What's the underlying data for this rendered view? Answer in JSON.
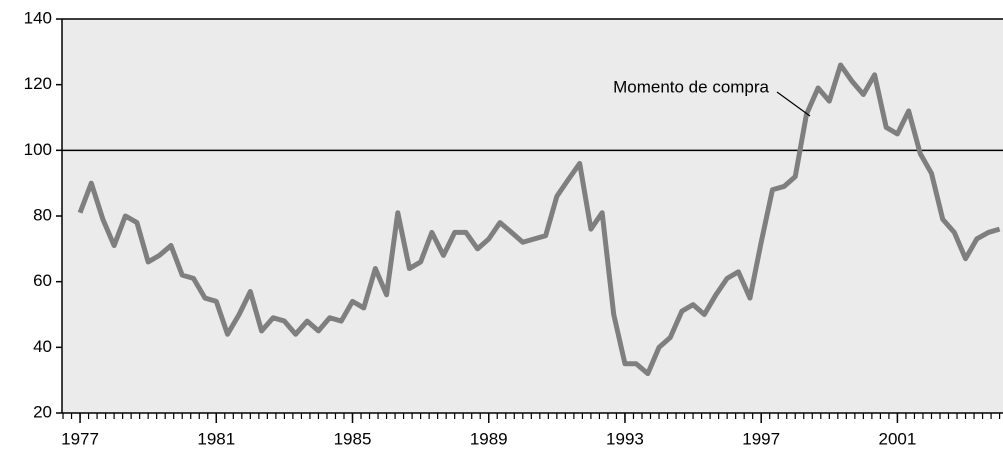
{
  "chart_data": {
    "type": "line",
    "annotation": "Momento de compra",
    "x": [
      1977,
      1977.33,
      1977.67,
      1978,
      1978.33,
      1978.67,
      1979,
      1979.33,
      1979.67,
      1980,
      1980.33,
      1980.67,
      1981,
      1981.33,
      1981.67,
      1982,
      1982.33,
      1982.67,
      1983,
      1983.33,
      1983.67,
      1984,
      1984.33,
      1984.67,
      1985,
      1985.33,
      1985.67,
      1986,
      1986.33,
      1986.67,
      1987,
      1987.33,
      1987.67,
      1988,
      1988.33,
      1988.67,
      1989,
      1989.33,
      1989.67,
      1990,
      1990.33,
      1990.67,
      1991,
      1991.33,
      1991.67,
      1992,
      1992.33,
      1992.67,
      1993,
      1993.33,
      1993.67,
      1994,
      1994.33,
      1994.67,
      1995,
      1995.33,
      1995.67,
      1996,
      1996.33,
      1996.67,
      1997,
      1997.33,
      1997.67,
      1998,
      1998.33,
      1998.67,
      1999,
      1999.33,
      1999.67,
      2000,
      2000.33,
      2000.67,
      2001,
      2001.33,
      2001.67,
      2002,
      2002.33,
      2002.67,
      2003,
      2003.33,
      2003.67,
      2004
    ],
    "series": [
      {
        "color": "#7f7f7f",
        "values": [
          81,
          90,
          79,
          71,
          80,
          78,
          66,
          68,
          71,
          62,
          61,
          55,
          54,
          44,
          50,
          57,
          45,
          49,
          48,
          44,
          48,
          45,
          49,
          48,
          54,
          52,
          64,
          56,
          81,
          64,
          66,
          75,
          68,
          75,
          75,
          70,
          73,
          78,
          75,
          72,
          73,
          74,
          86,
          91,
          96,
          76,
          81,
          50,
          35,
          35,
          32,
          40,
          43,
          51,
          53,
          50,
          56,
          61,
          63,
          55,
          72,
          88,
          89,
          92,
          111,
          119,
          115,
          126,
          121,
          117,
          123,
          107,
          105,
          112,
          99,
          93,
          79,
          75,
          67,
          73,
          75,
          76
        ]
      }
    ],
    "reference_line": 100,
    "xlim": [
      1976.47,
      2004.1
    ],
    "xticks": [
      1977,
      1981,
      1985,
      1989,
      1993,
      1997,
      2001
    ],
    "ylim": [
      20,
      140
    ],
    "yticks": [
      20,
      40,
      60,
      80,
      100,
      120,
      140
    ]
  }
}
